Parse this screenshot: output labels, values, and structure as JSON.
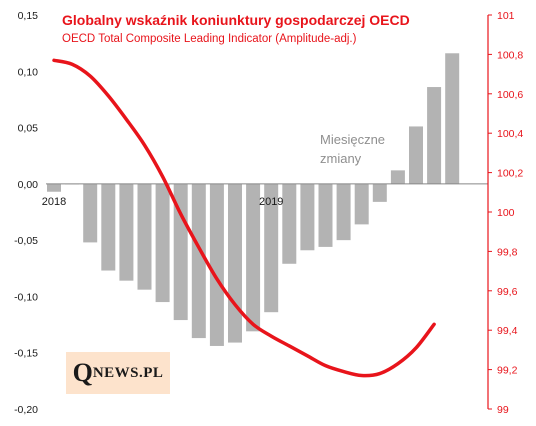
{
  "chart_data": {
    "type": "bar",
    "title": "Globalny wskaźnik koniunktury gospodarczej OECD",
    "subtitle": "OECD Total Composite Leading Indicator (Amplitude-adj.)",
    "annotation": "Miesięczne zmiany",
    "x_labels": [
      "2018",
      "2019"
    ],
    "y_left": {
      "ylim": [
        -0.2,
        0.15
      ],
      "ticks": [
        "0,15",
        "0,10",
        "0,05",
        "0,00",
        "-0,05",
        "-0,10",
        "-0,15",
        "-0,20"
      ],
      "tick_values": [
        0.15,
        0.1,
        0.05,
        0.0,
        -0.05,
        -0.1,
        -0.15,
        -0.2
      ]
    },
    "y_right": {
      "ylim": [
        99.0,
        101.0
      ],
      "ticks": [
        "101",
        "100,8",
        "100,6",
        "100,4",
        "100,2",
        "100",
        "99,8",
        "99,6",
        "99,4",
        "99,2",
        "99"
      ],
      "tick_values": [
        101.0,
        100.8,
        100.6,
        100.4,
        100.2,
        100.0,
        99.8,
        99.6,
        99.4,
        99.2,
        99.0
      ]
    },
    "series": [
      {
        "kind": "bar",
        "axis": "left",
        "color": "#b3b3b3",
        "values": [
          -0.007,
          0.0,
          -0.052,
          -0.077,
          -0.086,
          -0.094,
          -0.105,
          -0.121,
          -0.137,
          -0.144,
          -0.141,
          -0.131,
          -0.114,
          -0.071,
          -0.059,
          -0.056,
          -0.05,
          -0.036,
          -0.016,
          0.012,
          0.051,
          0.086,
          0.116
        ]
      },
      {
        "kind": "line",
        "axis": "right",
        "color": "#e8141b",
        "values": [
          100.77,
          100.75,
          100.69,
          100.59,
          100.47,
          100.34,
          100.18,
          99.99,
          99.82,
          99.66,
          99.53,
          99.43,
          99.37,
          99.32,
          99.27,
          99.22,
          99.19,
          99.17,
          99.18,
          99.23,
          99.31,
          99.43
        ]
      }
    ],
    "colors": {
      "title": "#e8141b",
      "bars": "#b3b3b3",
      "line": "#e8141b",
      "annotation": "#8f8f8f",
      "logo_bg": "#fde3cc"
    }
  },
  "logo": {
    "q": "Q",
    "rest": "NEWS.PL"
  }
}
